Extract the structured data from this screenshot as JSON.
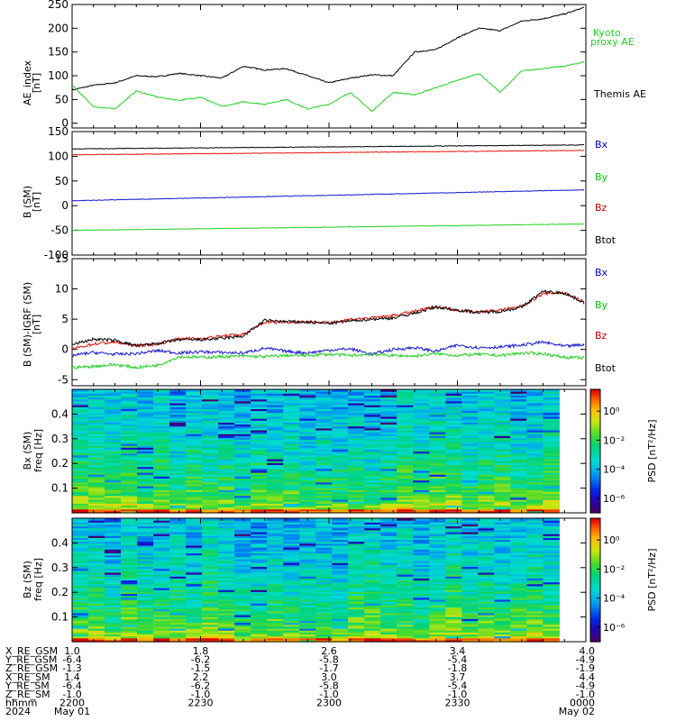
{
  "colors": {
    "black": "#000000",
    "red": "#e8140c",
    "blue": "#1616d4",
    "green": "#22d022",
    "bx_label": "#0000cc",
    "by_label": "#00cc00",
    "bz_label": "#cc0000",
    "ae_kyoto": "#22d022"
  },
  "time_axis": {
    "range_min": [
      0,
      120
    ],
    "ticks_min": [
      0,
      30,
      60,
      90,
      120
    ],
    "hhmm": [
      "2200",
      "2230",
      "2300",
      "2330",
      "0000"
    ]
  },
  "footer": {
    "rows": [
      {
        "label": "X_RE_GSM",
        "values": [
          "1.0",
          "1.8",
          "2.6",
          "3.4",
          "4.0"
        ]
      },
      {
        "label": "Y_RE_GSM",
        "values": [
          "-6.4",
          "-6.2",
          "-5.8",
          "-5.4",
          "-4.9"
        ]
      },
      {
        "label": "Z_RE_GSM",
        "values": [
          "-1.3",
          "-1.5",
          "-1.7",
          "-1.8",
          "-1.9"
        ]
      },
      {
        "label": "X_RE_SM",
        "values": [
          "1.4",
          "2.2",
          "3.0",
          "3.7",
          "4.4"
        ]
      },
      {
        "label": "Y_RE_SM",
        "values": [
          "-6.4",
          "-6.2",
          "-5.8",
          "-5.4",
          "-4.9"
        ]
      },
      {
        "label": "Z_RE_SM",
        "values": [
          "-1.0",
          "-1.0",
          "-1.0",
          "-1.0",
          "-1.0"
        ]
      },
      {
        "label": "hhmm",
        "values": [
          "2200",
          "2230",
          "2300",
          "2330",
          "0000"
        ]
      }
    ],
    "date_row": {
      "label": "2024",
      "start": "May 01",
      "end": "May 02"
    }
  },
  "chart_data": [
    {
      "type": "line",
      "ylabel": "AE_index [nT]",
      "ylim": [
        -10,
        250
      ],
      "yticks": [
        "0",
        "50",
        "100",
        "150",
        "200",
        "250"
      ],
      "yticks_values": [
        0,
        50,
        100,
        150,
        200,
        250
      ],
      "x_minutes": [
        0,
        5,
        10,
        15,
        20,
        25,
        30,
        35,
        40,
        45,
        50,
        55,
        60,
        65,
        70,
        75,
        80,
        85,
        90,
        95,
        100,
        105,
        110,
        115,
        120
      ],
      "series": [
        {
          "name": "Themis AE",
          "color_key": "black",
          "values": [
            70,
            80,
            85,
            100,
            98,
            105,
            100,
            95,
            120,
            112,
            115,
            100,
            85,
            95,
            102,
            100,
            150,
            155,
            180,
            200,
            195,
            215,
            220,
            230,
            245
          ]
        },
        {
          "name": "Kyoto proxy AE",
          "color_key": "green",
          "values": [
            80,
            35,
            30,
            68,
            55,
            48,
            55,
            35,
            45,
            40,
            50,
            30,
            40,
            65,
            25,
            65,
            60,
            75,
            90,
            105,
            65,
            110,
            115,
            120,
            130
          ]
        }
      ],
      "legend": [
        "Kyoto proxy AE",
        "Themis AE"
      ]
    },
    {
      "type": "line",
      "ylabel": "B (SM) [nT]",
      "ylim": [
        -100,
        150
      ],
      "yticks": [
        "-100",
        "-50",
        "0",
        "50",
        "100",
        "150"
      ],
      "yticks_values": [
        -100,
        -50,
        0,
        50,
        100,
        150
      ],
      "x_minutes": [
        0,
        120
      ],
      "series": [
        {
          "name": "Bx",
          "color_key": "blue",
          "values": [
            10,
            32
          ]
        },
        {
          "name": "By",
          "color_key": "green",
          "values": [
            -50,
            -37
          ]
        },
        {
          "name": "Bz",
          "color_key": "red",
          "values": [
            103,
            112
          ]
        },
        {
          "name": "Btot",
          "color_key": "black",
          "values": [
            115,
            123
          ]
        }
      ],
      "legend": [
        "Bx",
        "By",
        "Bz",
        "Btot"
      ]
    },
    {
      "type": "line",
      "ylabel": "B (SM)-IGRF (SM) [nT]",
      "ylim": [
        -6,
        15
      ],
      "yticks": [
        "-5",
        "0",
        "5",
        "10",
        "15"
      ],
      "yticks_values": [
        -5,
        0,
        5,
        10,
        15
      ],
      "x_minutes": [
        0,
        5,
        10,
        15,
        20,
        25,
        30,
        35,
        40,
        45,
        50,
        55,
        60,
        65,
        70,
        75,
        80,
        85,
        90,
        95,
        100,
        105,
        110,
        115,
        120
      ],
      "series": [
        {
          "name": "Bx",
          "color_key": "blue",
          "values": [
            -1.0,
            -0.5,
            -0.8,
            -0.7,
            -0.2,
            -0.6,
            -0.4,
            -0.5,
            -0.6,
            0.2,
            -0.3,
            -0.6,
            -0.1,
            0.1,
            -0.8,
            0.0,
            0.3,
            -0.3,
            0.7,
            0.3,
            0.4,
            0.7,
            1.2,
            0.5,
            0.8
          ]
        },
        {
          "name": "By",
          "color_key": "green",
          "values": [
            -3.0,
            -2.8,
            -2.5,
            -3.0,
            -2.6,
            -1.2,
            -1.3,
            -1.2,
            -1.1,
            -1.2,
            -1.0,
            -1.0,
            -0.8,
            -1.0,
            -0.8,
            -1.0,
            -1.1,
            -0.7,
            -1.0,
            -0.8,
            -1.0,
            -0.6,
            -0.7,
            -1.3,
            -1.4
          ]
        },
        {
          "name": "Bz",
          "color_key": "red",
          "values": [
            0.1,
            0.9,
            1.2,
            0.6,
            0.9,
            1.8,
            1.8,
            2.2,
            2.5,
            4.5,
            4.5,
            4.6,
            4.4,
            5.0,
            5.2,
            5.6,
            6.3,
            7.1,
            6.5,
            6.2,
            6.5,
            7.1,
            9.2,
            9.4,
            7.7
          ]
        },
        {
          "name": "Btot",
          "color_key": "black",
          "values": [
            0.8,
            1.7,
            1.5,
            0.6,
            1.0,
            1.6,
            1.6,
            1.8,
            2.2,
            4.8,
            4.6,
            4.5,
            4.3,
            4.7,
            5.0,
            5.2,
            6.0,
            7.0,
            6.5,
            6.1,
            6.3,
            7.0,
            9.6,
            9.3,
            7.6
          ]
        }
      ],
      "legend": [
        "Bx",
        "By",
        "Bz",
        "Btot"
      ]
    },
    {
      "type": "heatmap",
      "ylabel": "Bx (SM) freq [Hz]",
      "ylim": [
        0,
        0.5
      ],
      "yticks": [
        "0.1",
        "0.2",
        "0.3",
        "0.4"
      ],
      "yticks_values": [
        0.1,
        0.2,
        0.3,
        0.4
      ],
      "colorbar": {
        "label": "PSD [nT²/Hz]",
        "ticks": [
          "10⁰",
          "10⁻²",
          "10⁻⁴",
          "10⁻⁶"
        ],
        "log_range": [
          -7,
          1.5
        ]
      }
    },
    {
      "type": "heatmap",
      "ylabel": "Bz (SM) freq [Hz]",
      "ylim": [
        0,
        0.5
      ],
      "yticks": [
        "0.1",
        "0.2",
        "0.3",
        "0.4"
      ],
      "yticks_values": [
        0.1,
        0.2,
        0.3,
        0.4
      ],
      "colorbar": {
        "label": "PSD [nT²/Hz]",
        "ticks": [
          "10⁰",
          "10⁻²",
          "10⁻⁴",
          "10⁻⁶"
        ],
        "log_range": [
          -7,
          1.5
        ]
      }
    }
  ]
}
